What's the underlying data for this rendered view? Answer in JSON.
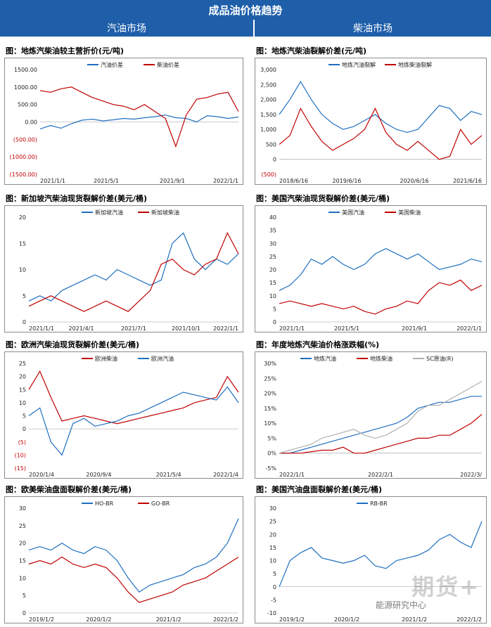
{
  "header": {
    "title": "成品油价格趋势",
    "left_section": "汽油市场",
    "right_section": "柴油市场"
  },
  "watermark": {
    "big": "期货+",
    "small": "能源研究中心"
  },
  "colors": {
    "blue": "#1f6fc0",
    "red": "#c00000",
    "gray": "#b0b0b0",
    "header": "#1f5faa"
  },
  "chart_data": [
    {
      "type": "line",
      "title": "图：地炼汽柴油较主营折价(元/吨)",
      "x_ticks": [
        "2021/1/1",
        "2021/5/1",
        "2021/9/1",
        "2022/1/1"
      ],
      "y_ticks": [
        "1500.00",
        "1000.00",
        "500.00",
        "0.00",
        "(500.00)",
        "(1000.00)",
        "(1500.00)"
      ],
      "ylim": [
        -1500,
        1500
      ],
      "legend_position": "top",
      "x": [
        0,
        1,
        2,
        3,
        4,
        5,
        6,
        7,
        8,
        9,
        10,
        11,
        12,
        13,
        14,
        15,
        16,
        17,
        18,
        19
      ],
      "series": [
        {
          "name": "汽油价差",
          "color": "#1f6fc0",
          "values": [
            -200,
            -100,
            -180,
            -50,
            50,
            80,
            30,
            60,
            100,
            80,
            120,
            150,
            200,
            120,
            100,
            0,
            180,
            150,
            100,
            140
          ]
        },
        {
          "name": "柴油价差",
          "color": "#c00000",
          "values": [
            900,
            850,
            950,
            1000,
            850,
            700,
            600,
            500,
            450,
            350,
            500,
            300,
            100,
            -700,
            200,
            650,
            700,
            800,
            850,
            300
          ]
        }
      ]
    },
    {
      "type": "line",
      "title": "图：地炼汽柴油裂解价差(元/吨)",
      "x_ticks": [
        "2018/6/16",
        "2019/6/16",
        "2020/6/16",
        "2021/6/16"
      ],
      "y_ticks": [
        "3,000",
        "2,500",
        "2,000",
        "1,500",
        "1,000",
        "500",
        "0",
        "(500)"
      ],
      "ylim": [
        -500,
        3000
      ],
      "legend_position": "top",
      "x": [
        0,
        1,
        2,
        3,
        4,
        5,
        6,
        7,
        8,
        9,
        10,
        11,
        12,
        13,
        14,
        15,
        16,
        17,
        18,
        19
      ],
      "series": [
        {
          "name": "地炼汽油裂解",
          "color": "#1f6fc0",
          "values": [
            1500,
            2000,
            2600,
            2000,
            1500,
            1200,
            1000,
            1100,
            1300,
            1500,
            1200,
            1000,
            900,
            1000,
            1400,
            1800,
            1700,
            1300,
            1600,
            1500
          ]
        },
        {
          "name": "地炼柴油裂解",
          "color": "#c00000",
          "values": [
            500,
            800,
            1700,
            1100,
            600,
            300,
            500,
            700,
            1000,
            1700,
            900,
            500,
            300,
            600,
            300,
            0,
            100,
            1000,
            500,
            800
          ]
        }
      ]
    },
    {
      "type": "line",
      "title": "图：新加坡汽柴油现货裂解价差(美元/桶)",
      "x_ticks": [
        "2021/1/1",
        "2021/4/1",
        "2021/7/1",
        "2021/10/1",
        "2022/1/1"
      ],
      "y_ticks": [
        "20",
        "15",
        "10",
        "5",
        "0"
      ],
      "ylim": [
        0,
        20
      ],
      "legend_position": "top",
      "x": [
        0,
        1,
        2,
        3,
        4,
        5,
        6,
        7,
        8,
        9,
        10,
        11,
        12,
        13,
        14,
        15,
        16,
        17,
        18,
        19
      ],
      "series": [
        {
          "name": "新加坡汽油",
          "color": "#1f6fc0",
          "values": [
            4,
            5,
            4,
            6,
            7,
            8,
            9,
            8,
            10,
            9,
            8,
            7,
            8,
            15,
            17,
            12,
            10,
            12,
            11,
            13
          ]
        },
        {
          "name": "新加坡柴油",
          "color": "#c00000",
          "values": [
            3,
            4,
            5,
            4,
            3,
            2,
            3,
            4,
            3,
            2,
            4,
            6,
            11,
            12,
            10,
            9,
            11,
            12,
            17,
            13
          ]
        }
      ]
    },
    {
      "type": "line",
      "title": "图：美国汽柴油现货裂解价差(美元/桶)",
      "x_ticks": [
        "2021/1/1",
        "2021/5/1",
        "2021/9/1",
        "2022/1/1"
      ],
      "y_ticks": [
        "40",
        "35",
        "30",
        "25",
        "20",
        "15",
        "10",
        "5",
        "0"
      ],
      "ylim": [
        0,
        40
      ],
      "legend_position": "top",
      "x": [
        0,
        1,
        2,
        3,
        4,
        5,
        6,
        7,
        8,
        9,
        10,
        11,
        12,
        13,
        14,
        15,
        16,
        17,
        18,
        19
      ],
      "series": [
        {
          "name": "美国汽油",
          "color": "#1f6fc0",
          "values": [
            12,
            14,
            18,
            24,
            22,
            25,
            22,
            20,
            22,
            26,
            28,
            26,
            24,
            26,
            23,
            20,
            21,
            22,
            24,
            23
          ]
        },
        {
          "name": "美国柴油",
          "color": "#c00000",
          "values": [
            7,
            8,
            7,
            6,
            7,
            6,
            5,
            6,
            4,
            3,
            5,
            6,
            8,
            7,
            12,
            15,
            14,
            16,
            12,
            14
          ]
        }
      ]
    },
    {
      "type": "line",
      "title": "图：欧洲汽柴油现货裂解价差(美元/桶)",
      "x_ticks": [
        "2020/1/4",
        "2020/9/4",
        "2021/5/4",
        "2022/1/4"
      ],
      "y_ticks": [
        "25",
        "20",
        "15",
        "10",
        "5",
        "0",
        "(5)",
        "(10)",
        "(15)"
      ],
      "ylim": [
        -15,
        25
      ],
      "legend_position": "top",
      "x": [
        0,
        1,
        2,
        3,
        4,
        5,
        6,
        7,
        8,
        9,
        10,
        11,
        12,
        13,
        14,
        15,
        16,
        17,
        18,
        19
      ],
      "series": [
        {
          "name": "欧洲柴油",
          "color": "#c00000",
          "values": [
            15,
            22,
            12,
            3,
            4,
            5,
            4,
            3,
            2,
            3,
            4,
            5,
            6,
            7,
            8,
            10,
            11,
            12,
            20,
            14
          ]
        },
        {
          "name": "欧洲汽油",
          "color": "#1f6fc0",
          "values": [
            5,
            8,
            -5,
            -10,
            2,
            4,
            1,
            2,
            3,
            5,
            6,
            8,
            10,
            12,
            14,
            13,
            12,
            11,
            16,
            10
          ]
        }
      ]
    },
    {
      "type": "line",
      "title": "图：年度地炼汽柴油价格涨跌幅(%)",
      "x_ticks": [
        "2022/1/1",
        "2022/2/1",
        "2022/3/"
      ],
      "y_ticks": [
        "30%",
        "25%",
        "20%",
        "15%",
        "10%",
        "5%",
        "0%",
        "-5%"
      ],
      "ylim": [
        -5,
        30
      ],
      "legend_position": "top",
      "x": [
        0,
        1,
        2,
        3,
        4,
        5,
        6,
        7,
        8,
        9,
        10,
        11,
        12,
        13,
        14,
        15,
        16,
        17,
        18,
        19
      ],
      "series": [
        {
          "name": "地炼汽油",
          "color": "#1f6fc0",
          "values": [
            0,
            0,
            1,
            2,
            3,
            4,
            5,
            6,
            7,
            8,
            9,
            10,
            12,
            15,
            16,
            17,
            17,
            18,
            19,
            19
          ]
        },
        {
          "name": "地炼柴油",
          "color": "#c00000",
          "values": [
            0,
            0,
            0,
            0.5,
            1,
            1,
            2,
            0,
            0,
            1,
            2,
            3,
            4,
            5,
            5,
            6,
            6,
            8,
            10,
            13
          ]
        },
        {
          "name": "SC原油(R)",
          "color": "#b0b0b0",
          "values": [
            0,
            1,
            2,
            3,
            5,
            6,
            7,
            8,
            6,
            5,
            6,
            8,
            10,
            14,
            16,
            16,
            18,
            20,
            22,
            24
          ]
        }
      ]
    },
    {
      "type": "line",
      "title": "图：欧美柴油盘面裂解价差(美元/桶)",
      "x_ticks": [
        "2019/1/2",
        "2020/1/2",
        "2021/1/2",
        "2022/1/2"
      ],
      "y_ticks": [
        "30",
        "25",
        "20",
        "15",
        "10",
        "5",
        "0"
      ],
      "ylim": [
        0,
        30
      ],
      "legend_position": "top",
      "x": [
        0,
        1,
        2,
        3,
        4,
        5,
        6,
        7,
        8,
        9,
        10,
        11,
        12,
        13,
        14,
        15,
        16,
        17,
        18,
        19
      ],
      "series": [
        {
          "name": "HO-BR",
          "color": "#1f6fc0",
          "values": [
            18,
            19,
            18,
            20,
            18,
            17,
            19,
            18,
            15,
            10,
            6,
            8,
            9,
            10,
            11,
            13,
            14,
            16,
            20,
            27
          ]
        },
        {
          "name": "GO-BR",
          "color": "#c00000",
          "values": [
            14,
            15,
            14,
            16,
            14,
            13,
            14,
            13,
            10,
            6,
            3,
            4,
            5,
            6,
            8,
            9,
            10,
            12,
            14,
            16
          ]
        }
      ]
    },
    {
      "type": "line",
      "title": "图：美国汽油盘面裂解价差(美元/桶)",
      "x_ticks": [
        "2019/1/2",
        "2020/1/2",
        "2021/1/2",
        "2022/1/2"
      ],
      "y_ticks": [
        "30",
        "25",
        "20",
        "15",
        "10",
        "5",
        "0",
        "-5",
        "-10"
      ],
      "ylim": [
        -10,
        30
      ],
      "legend_position": "top",
      "x": [
        0,
        1,
        2,
        3,
        4,
        5,
        6,
        7,
        8,
        9,
        10,
        11,
        12,
        13,
        14,
        15,
        16,
        17,
        18,
        19
      ],
      "series": [
        {
          "name": "RB-BR",
          "color": "#1f6fc0",
          "values": [
            0,
            10,
            13,
            15,
            11,
            10,
            9,
            10,
            12,
            8,
            7,
            10,
            11,
            12,
            14,
            18,
            20,
            17,
            15,
            25
          ]
        }
      ]
    }
  ]
}
